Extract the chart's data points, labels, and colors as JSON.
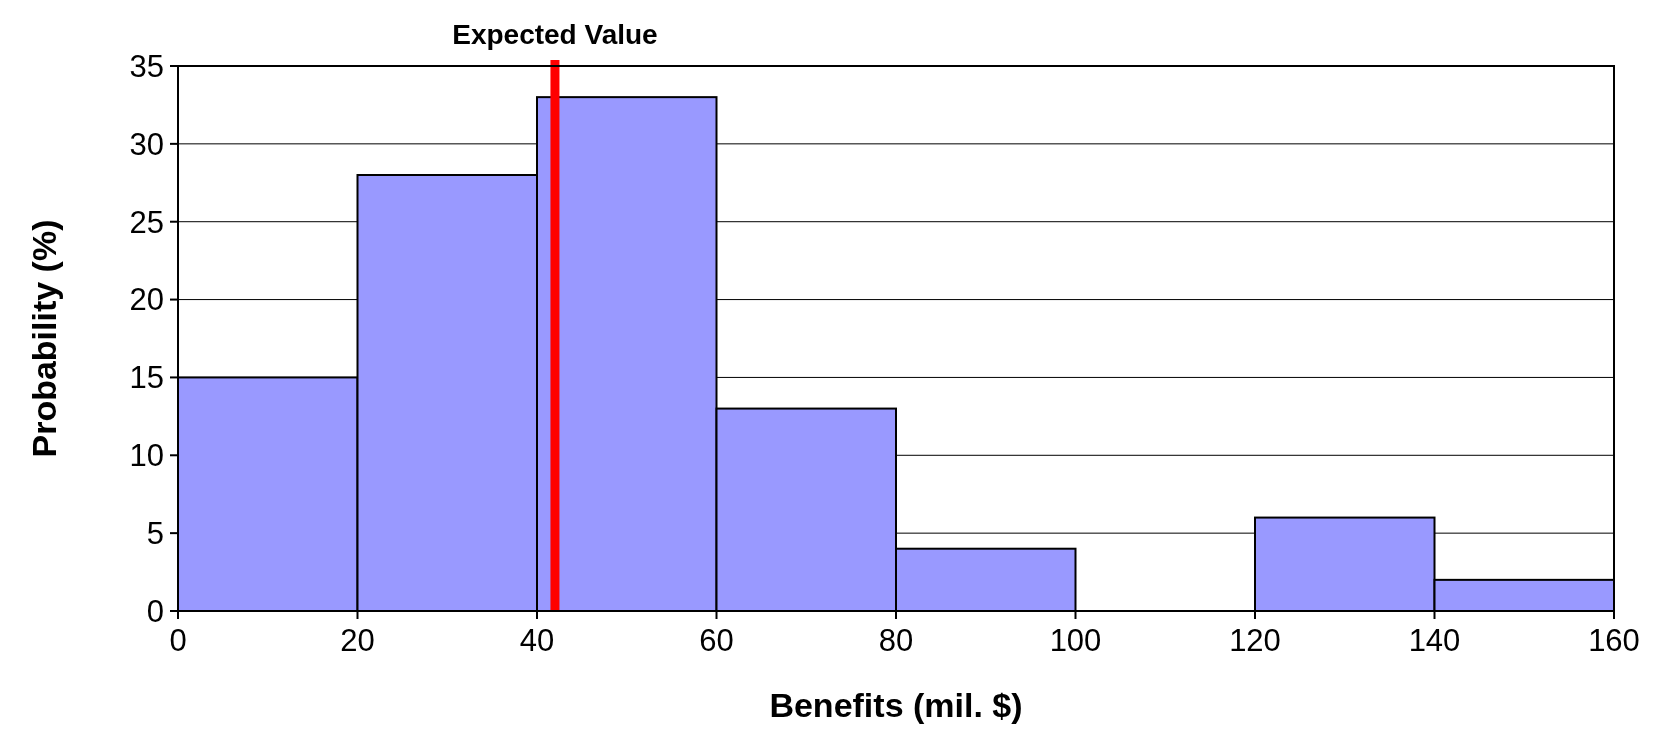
{
  "chart_data": {
    "type": "histogram",
    "xlabel": "Benefits (mil. $)",
    "ylabel": "Probability (%)",
    "bins": [
      0,
      20,
      40,
      60,
      80,
      100,
      120,
      140,
      160
    ],
    "values": [
      15,
      28,
      33,
      13,
      4,
      0,
      6,
      2
    ],
    "color": "#9999ff",
    "xlim": [
      0,
      160
    ],
    "xticks": [
      0,
      20,
      40,
      60,
      80,
      100,
      120,
      140,
      160
    ],
    "ylim": [
      0,
      35
    ],
    "yticks": [
      0,
      5,
      10,
      15,
      20,
      25,
      30,
      35
    ],
    "grid": "y",
    "ref_lines": [
      {
        "axis": "x",
        "value": 42,
        "label": "Expected Value",
        "color": "#ff0000"
      }
    ]
  }
}
